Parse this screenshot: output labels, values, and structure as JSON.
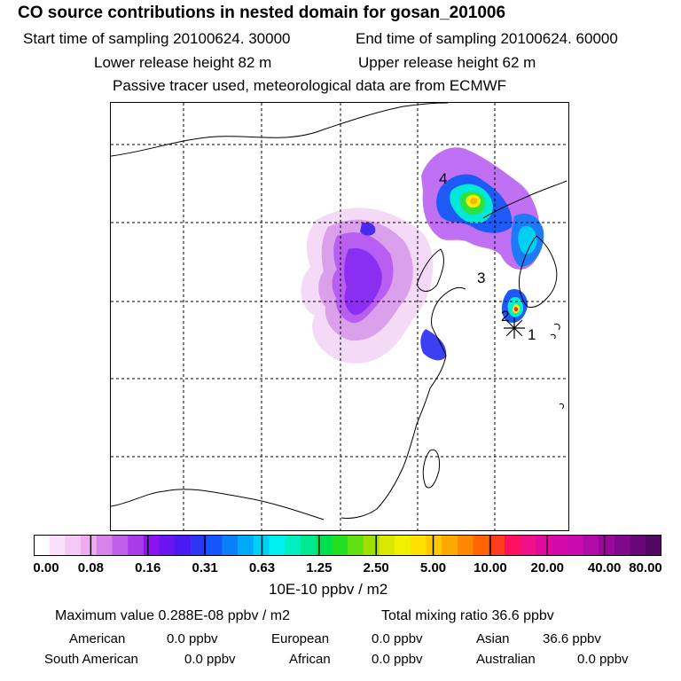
{
  "header": {
    "title": "CO  source contributions in nested domain for gosan_201006",
    "start_label": "Start time of sampling 20100624. 30000",
    "end_label": "End time of sampling 20100624. 60000",
    "lower_label": "Lower release height   82 m",
    "upper_label": "Upper release height   62 m",
    "tracer_note": "Passive tracer used, meteorological data are from ECMWF"
  },
  "chart_data": {
    "type": "heatmap",
    "title": "CO  source contributions in nested domain for gosan_201006",
    "colorbar": {
      "ticks": [
        "0.00",
        "0.08",
        "0.16",
        "0.31",
        "0.63",
        "1.25",
        "2.50",
        "5.00",
        "10.00",
        "20.00",
        "40.00",
        "80.00"
      ],
      "unit_label": "10E-10 ppbv / m2",
      "colors": [
        "#ffffff",
        "#fbe0fb",
        "#f5c8f5",
        "#efaaf0",
        "#d783e8",
        "#c060e8",
        "#a83aea",
        "#8a14ef",
        "#6a14f0",
        "#4a1af2",
        "#2a36f5",
        "#1456f8",
        "#0a80f8",
        "#00a8f8",
        "#00d0f5",
        "#00f0f0",
        "#00f0c0",
        "#00e890",
        "#00e050",
        "#20e020",
        "#60e010",
        "#a0e000",
        "#d8e800",
        "#f0f000",
        "#ffe000",
        "#ffc800",
        "#ffa800",
        "#ff8800",
        "#ff6400",
        "#ff3c1e",
        "#ff1060",
        "#f0108a",
        "#e00aa0",
        "#d40aa8",
        "#c80ab0",
        "#b00aa8",
        "#98089a",
        "#80088c",
        "#680878",
        "#500860"
      ]
    },
    "markers": [
      {
        "label": "4",
        "name": "marker-4"
      },
      {
        "label": "3",
        "name": "marker-3"
      },
      {
        "label": "2",
        "name": "marker-2"
      },
      {
        "label": "1",
        "name": "marker-1"
      }
    ],
    "maximum_value": "Maximum value  0.288E-08 ppbv / m2",
    "total_mixing_ratio": "Total mixing ratio       36.6 ppbv"
  },
  "contributions": {
    "american_label": "American",
    "american_value": "0.0 ppbv",
    "european_label": "European",
    "european_value": "0.0 ppbv",
    "asian_label": "Asian",
    "asian_value": "36.6 ppbv",
    "south_american_label": "South American",
    "south_american_value": "0.0 ppbv",
    "african_label": "African",
    "african_value": "0.0 ppbv",
    "australian_label": "Australian",
    "australian_value": "0.0 ppbv"
  }
}
